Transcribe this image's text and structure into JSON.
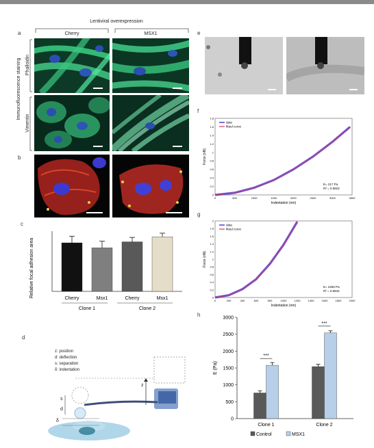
{
  "header": {
    "title": "Lentiviral overexpression"
  },
  "panel_labels": {
    "a": "a",
    "b": "b",
    "c": "c",
    "d": "d",
    "e": "e",
    "f": "f",
    "g": "g",
    "h": "h"
  },
  "panel_a": {
    "columns": [
      "Cherry",
      "MSX1"
    ],
    "side_label": "Immunofluorescence staining",
    "rows": [
      "Phalloidin",
      "Vimentin"
    ]
  },
  "chart_c": {
    "ylabel": "Relative focal adhesion area",
    "categories": [
      "Cherry",
      "Msx1",
      "Cherry",
      "Msx1"
    ],
    "groups": [
      "Clone 1",
      "Clone 2"
    ],
    "colors": [
      "#111111",
      "#7f7f7f",
      "#595959",
      "#e4ddc8"
    ],
    "values": [
      2.42,
      2.17,
      2.47,
      2.72
    ],
    "errors": [
      0.33,
      0.33,
      0.22,
      0.18
    ],
    "ylim": [
      0,
      3
    ]
  },
  "panel_d": {
    "legend": [
      "z: position",
      "d: deflection",
      "s: separation",
      "δ: indentation"
    ],
    "labels": {
      "z": "z",
      "d": "d",
      "s": "s",
      "delta": "δ"
    }
  },
  "chart_f": {
    "legend": [
      "data",
      "fitted curve"
    ],
    "xlabel": "Indentation (nm)",
    "ylabel": "Force (nN)",
    "stats": [
      "E= 217 Pa",
      "R² = 0.9923"
    ],
    "x_ticks": [
      "0",
      "500",
      "1000",
      "1500",
      "2000",
      "2500",
      "3000",
      "3500"
    ],
    "y_ticks": [
      "0",
      "0.2",
      "0.4",
      "0.6",
      "0.8",
      "1",
      "1.2",
      "1.4",
      "1.6",
      "1.8"
    ],
    "xlim": [
      0,
      3500
    ],
    "ylim": [
      0,
      1.8
    ]
  },
  "chart_g": {
    "legend": [
      "data",
      "fitted curve"
    ],
    "xlabel": "Indentation (nm)",
    "ylabel": "Force (nN)",
    "stats": [
      "E= 2250 Pa",
      "R² = 0.9944"
    ],
    "x_ticks": [
      "0",
      "200",
      "400",
      "600",
      "800",
      "1000",
      "1200",
      "1400",
      "1600",
      "1800",
      "2000"
    ],
    "y_ticks": [
      "0",
      "0.2",
      "0.4",
      "0.6",
      "0.8",
      "1",
      "1.2",
      "1.4",
      "1.6",
      "1.8",
      "2"
    ],
    "xlim": [
      0,
      2000
    ],
    "ylim": [
      0,
      2
    ]
  },
  "chart_data": [
    {
      "type": "bar",
      "ylabel": "Relative focal adhesion area",
      "categories": [
        "Cherry",
        "Msx1",
        "Cherry",
        "Msx1"
      ],
      "groups": [
        "Clone 1",
        "Clone 2"
      ],
      "values": [
        2.42,
        2.17,
        2.47,
        2.72
      ],
      "errors": [
        0.33,
        0.33,
        0.22,
        0.18
      ],
      "ylim": [
        0,
        3
      ]
    },
    {
      "type": "line",
      "xlabel": "Indentation (nm)",
      "ylabel": "Force (nN)",
      "series": [
        {
          "name": "data",
          "x": [
            0,
            500,
            1000,
            1500,
            2000,
            2500,
            3000,
            3450
          ],
          "y": [
            0,
            0.05,
            0.17,
            0.35,
            0.6,
            0.9,
            1.25,
            1.6
          ]
        },
        {
          "name": "fitted curve",
          "x": [
            0,
            500,
            1000,
            1500,
            2000,
            2500,
            3000,
            3450
          ],
          "y": [
            0,
            0.05,
            0.17,
            0.35,
            0.6,
            0.9,
            1.25,
            1.6
          ]
        }
      ],
      "xlim": [
        0,
        3500
      ],
      "ylim": [
        0,
        1.8
      ]
    },
    {
      "type": "line",
      "xlabel": "Indentation (nm)",
      "ylabel": "Force (nN)",
      "series": [
        {
          "name": "data",
          "x": [
            0,
            200,
            400,
            600,
            800,
            1000,
            1200
          ],
          "y": [
            0,
            0.06,
            0.22,
            0.48,
            0.88,
            1.38,
            1.98
          ]
        },
        {
          "name": "fitted curve",
          "x": [
            0,
            200,
            400,
            600,
            800,
            1000,
            1200
          ],
          "y": [
            0,
            0.06,
            0.22,
            0.48,
            0.88,
            1.38,
            1.98
          ]
        }
      ],
      "xlim": [
        0,
        2000
      ],
      "ylim": [
        0,
        2
      ]
    },
    {
      "type": "bar",
      "ylabel": "E (Pa)",
      "categories": [
        "Clone 1",
        "Clone 2"
      ],
      "series": [
        {
          "name": "Control",
          "values": [
            760,
            1540
          ],
          "errors": [
            60,
            70
          ]
        },
        {
          "name": "MSX1",
          "values": [
            1580,
            2540
          ],
          "errors": [
            80,
            60
          ]
        }
      ],
      "colors": {
        "Control": "#595959",
        "MSX1": "#b7cfe8"
      },
      "significance": [
        "***",
        "***"
      ],
      "ylim": [
        0,
        3000
      ],
      "y_ticks": [
        "0",
        "500",
        "1000",
        "1500",
        "2000",
        "2500",
        "3000"
      ]
    }
  ]
}
